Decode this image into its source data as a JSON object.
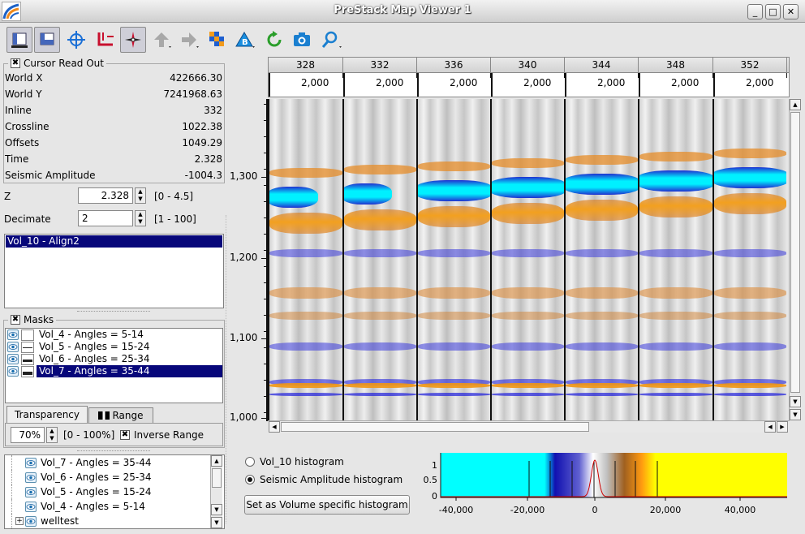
{
  "window": {
    "title": "PreStack Map Viewer 1",
    "min": "_",
    "max": "□",
    "close": "✕"
  },
  "toolbar": {
    "icons": [
      "view-layout-1",
      "view-layout-2",
      "crosshair",
      "pick-line",
      "compass",
      "back-arrow",
      "forward-arrow",
      "color-grid",
      "volume-b",
      "refresh",
      "camera",
      "zoom"
    ]
  },
  "cursor": {
    "title": "Cursor Read Out",
    "checked": "✖",
    "rows": [
      {
        "label": "World X",
        "value": "422666.30"
      },
      {
        "label": "World Y",
        "value": "7241968.63"
      },
      {
        "label": "Inline",
        "value": "332"
      },
      {
        "label": "Crossline",
        "value": "1022.38"
      },
      {
        "label": "Offsets",
        "value": "1049.29"
      },
      {
        "label": "Time",
        "value": "2.328"
      },
      {
        "label": "Seismic Amplitude",
        "value": "-1004.3"
      }
    ]
  },
  "z": {
    "label": "Z",
    "value": "2.328",
    "range": "[0 - 4.5]"
  },
  "decimate": {
    "label": "Decimate",
    "value": "2",
    "range": "[1 - 100]"
  },
  "volumes": {
    "selected": "Vol_10 - Align2"
  },
  "masks": {
    "title": "Masks",
    "checked": "✖",
    "items": [
      {
        "label": "Vol_4 - Angles = 5-14"
      },
      {
        "label": "Vol_5 - Angles = 15-24"
      },
      {
        "label": "Vol_6 - Angles = 25-34"
      },
      {
        "label": "Vol_7 - Angles = 35-44"
      }
    ],
    "selected_index": 3
  },
  "tabs": {
    "transparency": "Transparency",
    "range": "Range"
  },
  "transparency": {
    "value": "70%",
    "range": "[0 - 100%]",
    "inverse_label": "Inverse Range",
    "inverse_checked": "✖"
  },
  "tree": {
    "items": [
      {
        "label": "Vol_7 - Angles = 35-44"
      },
      {
        "label": "Vol_6 - Angles = 25-34"
      },
      {
        "label": "Vol_5 - Angles = 15-24"
      },
      {
        "label": "Vol_4 - Angles = 5-14"
      },
      {
        "label": "welltest"
      }
    ],
    "expand": "+"
  },
  "seismic": {
    "inlines": [
      "328",
      "332",
      "336",
      "340",
      "344",
      "348",
      "352"
    ],
    "offsets": [
      "2,000",
      "2,000",
      "2,000",
      "2,000",
      "2,000",
      "2,000",
      "2,000"
    ],
    "yticks": [
      "1,300",
      "1,200",
      "1,100",
      "1,000"
    ]
  },
  "histogram": {
    "option1": "Vol_10 histogram",
    "option2": "Seismic Amplitude histogram",
    "selected": 2,
    "button": "Set as Volume specific histogram",
    "yticks": [
      "1",
      "0.5",
      "0"
    ],
    "xticks": [
      "-40,000",
      "-20,000",
      "0",
      "20,000",
      "40,000"
    ]
  },
  "colors": {
    "selection": "#07077a",
    "cyan": "#00ffff",
    "blue": "#1010d0",
    "orange": "#e08010",
    "yellow": "#ffff00"
  }
}
